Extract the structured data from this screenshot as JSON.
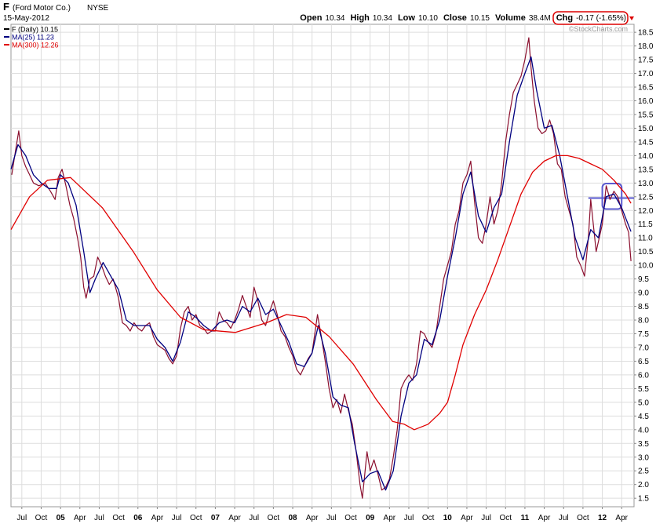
{
  "chart_data": {
    "type": "line",
    "title": "F",
    "company": "(Ford Motor Co.)",
    "exchange": "NYSE",
    "date": "15-May-2012",
    "quote": [
      {
        "label": "Open",
        "value": "10.34"
      },
      {
        "label": "High",
        "value": "10.34"
      },
      {
        "label": "Low",
        "value": "10.10"
      },
      {
        "label": "Close",
        "value": "10.15"
      },
      {
        "label": "Volume",
        "value": "38.4M"
      },
      {
        "label": "Chg",
        "value": "-0.17 (-1.65%)"
      }
    ],
    "watermark": "©StockCharts.com",
    "grid": true,
    "xlim": [
      2004.36,
      2012.41
    ],
    "ylim": [
      1.19,
      18.79
    ],
    "xticks": [
      {
        "value": 2004.5,
        "label": "Jul"
      },
      {
        "value": 2004.75,
        "label": "Oct"
      },
      {
        "value": 2005,
        "label": "05"
      },
      {
        "value": 2005.25,
        "label": "Apr"
      },
      {
        "value": 2005.5,
        "label": "Jul"
      },
      {
        "value": 2005.75,
        "label": "Oct"
      },
      {
        "value": 2006,
        "label": "06"
      },
      {
        "value": 2006.25,
        "label": "Apr"
      },
      {
        "value": 2006.5,
        "label": "Jul"
      },
      {
        "value": 2006.75,
        "label": "Oct"
      },
      {
        "value": 2007,
        "label": "07"
      },
      {
        "value": 2007.25,
        "label": "Apr"
      },
      {
        "value": 2007.5,
        "label": "Jul"
      },
      {
        "value": 2007.75,
        "label": "Oct"
      },
      {
        "value": 2008,
        "label": "08"
      },
      {
        "value": 2008.25,
        "label": "Apr"
      },
      {
        "value": 2008.5,
        "label": "Jul"
      },
      {
        "value": 2008.75,
        "label": "Oct"
      },
      {
        "value": 2009,
        "label": "09"
      },
      {
        "value": 2009.25,
        "label": "Apr"
      },
      {
        "value": 2009.5,
        "label": "Jul"
      },
      {
        "value": 2009.75,
        "label": "Oct"
      },
      {
        "value": 2010,
        "label": "10"
      },
      {
        "value": 2010.25,
        "label": "Apr"
      },
      {
        "value": 2010.5,
        "label": "Jul"
      },
      {
        "value": 2010.75,
        "label": "Oct"
      },
      {
        "value": 2011,
        "label": "11"
      },
      {
        "value": 2011.25,
        "label": "Apr"
      },
      {
        "value": 2011.5,
        "label": "Jul"
      },
      {
        "value": 2011.75,
        "label": "Oct"
      },
      {
        "value": 2012,
        "label": "12"
      },
      {
        "value": 2012.25,
        "label": "Apr"
      }
    ],
    "yticks": [
      1.5,
      {
        "value": 2,
        "label": "2.0"
      },
      2.5,
      {
        "value": 3,
        "label": "3.0"
      },
      3.5,
      {
        "value": 4,
        "label": "4.0"
      },
      4.5,
      {
        "value": 5,
        "label": "5.0"
      },
      5.5,
      {
        "value": 6,
        "label": "6.0"
      },
      6.5,
      {
        "value": 7,
        "label": "7.0"
      },
      7.5,
      {
        "value": 8,
        "label": "8.0"
      },
      8.5,
      {
        "value": 9,
        "label": "9.0"
      },
      9.5,
      {
        "value": 10,
        "label": "10.0"
      },
      10.5,
      {
        "value": 11,
        "label": "11.0"
      },
      11.5,
      {
        "value": 12,
        "label": "12.0"
      },
      12.5,
      {
        "value": 13,
        "label": "13.0"
      },
      13.5,
      {
        "value": 14,
        "label": "14.0"
      },
      14.5,
      {
        "value": 15,
        "label": "15.0"
      },
      15.5,
      {
        "value": 16,
        "label": "16.0"
      },
      16.5,
      {
        "value": 17,
        "label": "17.0"
      },
      17.5,
      {
        "value": 18,
        "label": "18.0"
      },
      18.5
    ],
    "series": [
      {
        "name": "F (Daily) 10.15",
        "color": "#8b0f2e",
        "legend_color": "#000000",
        "x": [
          2004.37,
          2004.42,
          2004.46,
          2004.5,
          2004.55,
          2004.6,
          2004.65,
          2004.72,
          2004.8,
          2004.87,
          2004.93,
          2004.97,
          2005.02,
          2005.07,
          2005.12,
          2005.17,
          2005.22,
          2005.26,
          2005.3,
          2005.33,
          2005.38,
          2005.43,
          2005.48,
          2005.53,
          2005.58,
          2005.63,
          2005.68,
          2005.75,
          2005.8,
          2005.85,
          2005.9,
          2005.95,
          2006.0,
          2006.05,
          2006.1,
          2006.15,
          2006.2,
          2006.25,
          2006.3,
          2006.35,
          2006.4,
          2006.45,
          2006.5,
          2006.55,
          2006.6,
          2006.65,
          2006.7,
          2006.75,
          2006.8,
          2006.85,
          2006.9,
          2006.95,
          2007.0,
          2007.05,
          2007.1,
          2007.15,
          2007.2,
          2007.25,
          2007.3,
          2007.35,
          2007.4,
          2007.45,
          2007.5,
          2007.55,
          2007.6,
          2007.65,
          2007.7,
          2007.75,
          2007.8,
          2007.85,
          2007.9,
          2007.95,
          2008.0,
          2008.05,
          2008.1,
          2008.15,
          2008.2,
          2008.25,
          2008.32,
          2008.37,
          2008.42,
          2008.47,
          2008.52,
          2008.57,
          2008.62,
          2008.67,
          2008.72,
          2008.77,
          2008.82,
          2008.87,
          2008.9,
          2008.96,
          2009.0,
          2009.05,
          2009.1,
          2009.15,
          2009.2,
          2009.25,
          2009.3,
          2009.35,
          2009.4,
          2009.45,
          2009.5,
          2009.55,
          2009.6,
          2009.65,
          2009.7,
          2009.75,
          2009.8,
          2009.85,
          2009.9,
          2009.95,
          2010.0,
          2010.05,
          2010.1,
          2010.15,
          2010.2,
          2010.25,
          2010.3,
          2010.35,
          2010.4,
          2010.45,
          2010.5,
          2010.55,
          2010.6,
          2010.65,
          2010.7,
          2010.75,
          2010.8,
          2010.85,
          2010.9,
          2010.95,
          2011.0,
          2011.05,
          2011.08,
          2011.12,
          2011.17,
          2011.22,
          2011.27,
          2011.32,
          2011.37,
          2011.42,
          2011.47,
          2011.52,
          2011.57,
          2011.62,
          2011.67,
          2011.72,
          2011.77,
          2011.82,
          2011.85,
          2011.92,
          2012.0,
          2012.05,
          2012.1,
          2012.15,
          2012.2,
          2012.25,
          2012.3,
          2012.34,
          2012.37
        ],
        "values": [
          13.3,
          14.2,
          14.9,
          14.0,
          13.6,
          13.3,
          13.0,
          12.9,
          13.0,
          12.7,
          12.4,
          13.2,
          13.5,
          12.9,
          12.2,
          11.7,
          11.0,
          10.3,
          9.2,
          8.8,
          9.5,
          9.6,
          10.3,
          10.0,
          9.6,
          9.3,
          9.5,
          8.8,
          7.9,
          7.8,
          7.6,
          7.9,
          7.7,
          7.6,
          7.8,
          7.9,
          7.4,
          7.1,
          7.0,
          6.9,
          6.6,
          6.4,
          6.7,
          7.7,
          8.3,
          8.5,
          8.0,
          8.2,
          7.8,
          7.7,
          7.5,
          7.6,
          7.6,
          8.3,
          8.0,
          7.9,
          7.7,
          8.0,
          8.4,
          8.9,
          8.5,
          8.1,
          9.2,
          8.7,
          8.0,
          7.8,
          8.3,
          8.7,
          8.2,
          7.6,
          7.4,
          7.0,
          6.7,
          6.2,
          6.0,
          6.3,
          6.6,
          6.8,
          8.2,
          7.4,
          6.5,
          5.5,
          4.8,
          5.1,
          4.6,
          5.3,
          4.7,
          4.2,
          3.2,
          2.0,
          1.5,
          3.2,
          2.5,
          2.9,
          2.4,
          1.8,
          1.9,
          2.2,
          3.0,
          4.0,
          5.5,
          5.8,
          6.0,
          5.8,
          6.4,
          7.6,
          7.5,
          7.2,
          7.0,
          7.5,
          8.5,
          9.5,
          10.0,
          10.5,
          11.5,
          12.0,
          13.0,
          13.3,
          13.8,
          12.3,
          11.0,
          10.8,
          11.5,
          12.5,
          11.5,
          12.0,
          13.0,
          14.5,
          15.5,
          16.3,
          16.6,
          16.9,
          17.5,
          18.3,
          17.2,
          16.0,
          15.0,
          14.8,
          14.9,
          15.3,
          14.8,
          13.7,
          13.5,
          12.5,
          12.0,
          11.5,
          10.3,
          10.0,
          9.6,
          11.0,
          12.4,
          10.5,
          11.5,
          12.9,
          12.4,
          12.7,
          12.5,
          12.0,
          11.5,
          11.2,
          10.15
        ]
      },
      {
        "name": "MA(25) 11.23",
        "color": "#000080",
        "x": [
          2004.36,
          2004.45,
          2004.55,
          2004.65,
          2004.75,
          2004.85,
          2004.95,
          2005.0,
          2005.1,
          2005.2,
          2005.3,
          2005.38,
          2005.45,
          2005.55,
          2005.65,
          2005.75,
          2005.85,
          2005.95,
          2006.05,
          2006.15,
          2006.25,
          2006.35,
          2006.45,
          2006.55,
          2006.65,
          2006.75,
          2006.85,
          2006.95,
          2007.05,
          2007.15,
          2007.25,
          2007.35,
          2007.45,
          2007.55,
          2007.65,
          2007.75,
          2007.85,
          2007.95,
          2008.05,
          2008.15,
          2008.25,
          2008.33,
          2008.42,
          2008.52,
          2008.62,
          2008.72,
          2008.8,
          2008.9,
          2009.0,
          2009.1,
          2009.2,
          2009.3,
          2009.4,
          2009.5,
          2009.6,
          2009.7,
          2009.8,
          2009.9,
          2010.0,
          2010.1,
          2010.2,
          2010.3,
          2010.4,
          2010.5,
          2010.6,
          2010.7,
          2010.8,
          2010.9,
          2011.0,
          2011.08,
          2011.15,
          2011.25,
          2011.35,
          2011.45,
          2011.55,
          2011.65,
          2011.75,
          2011.85,
          2011.95,
          2012.05,
          2012.15,
          2012.25,
          2012.37
        ],
        "values": [
          13.5,
          14.4,
          14.0,
          13.3,
          13.0,
          12.8,
          12.8,
          13.3,
          13.0,
          12.2,
          10.5,
          9.0,
          9.5,
          10.1,
          9.6,
          9.1,
          8.0,
          7.8,
          7.8,
          7.8,
          7.3,
          7.0,
          6.5,
          7.2,
          8.3,
          8.1,
          7.8,
          7.6,
          7.9,
          8.0,
          7.9,
          8.5,
          8.3,
          8.8,
          8.2,
          8.4,
          7.8,
          7.2,
          6.4,
          6.3,
          6.8,
          7.8,
          6.8,
          5.2,
          4.9,
          4.8,
          3.5,
          2.1,
          2.4,
          2.5,
          1.8,
          2.5,
          4.5,
          5.7,
          6.0,
          7.3,
          7.1,
          8.0,
          9.6,
          11.0,
          12.6,
          13.4,
          11.8,
          11.2,
          12.1,
          12.6,
          14.5,
          16.2,
          17.0,
          17.6,
          16.4,
          15.0,
          15.1,
          14.0,
          12.5,
          11.0,
          10.2,
          11.3,
          11.0,
          12.5,
          12.6,
          12.1,
          11.23
        ]
      },
      {
        "name": "MA(300) 12.26",
        "color": "#e00000",
        "x": [
          2004.36,
          2004.6,
          2004.83,
          2005.13,
          2005.54,
          2005.94,
          2006.25,
          2006.55,
          2006.85,
          2007.26,
          2007.66,
          2007.92,
          2008.17,
          2008.47,
          2008.78,
          2009.08,
          2009.29,
          2009.44,
          2009.57,
          2009.75,
          2009.9,
          2010.0,
          2010.1,
          2010.2,
          2010.35,
          2010.5,
          2010.65,
          2010.8,
          2010.95,
          2011.1,
          2011.25,
          2011.4,
          2011.55,
          2011.7,
          2011.85,
          2012.0,
          2012.15,
          2012.3,
          2012.37
        ],
        "values": [
          11.3,
          12.5,
          13.1,
          13.2,
          12.1,
          10.5,
          9.1,
          8.1,
          7.65,
          7.55,
          7.9,
          8.2,
          8.1,
          7.4,
          6.4,
          5.1,
          4.3,
          4.2,
          4.0,
          4.2,
          4.6,
          5.0,
          6.0,
          7.1,
          8.2,
          9.1,
          10.2,
          11.4,
          12.6,
          13.4,
          13.8,
          14.0,
          14.0,
          13.9,
          13.7,
          13.5,
          13.1,
          12.6,
          12.26
        ]
      }
    ],
    "annotations": {
      "hline": {
        "value": 12.45,
        "x": [
          2011.82,
          2012.41
        ],
        "color": "#5a5ad0"
      },
      "box": {
        "x": [
          2012.0,
          2012.25
        ],
        "y": [
          12.05,
          12.98
        ],
        "color": "#5a5ad0"
      }
    }
  }
}
